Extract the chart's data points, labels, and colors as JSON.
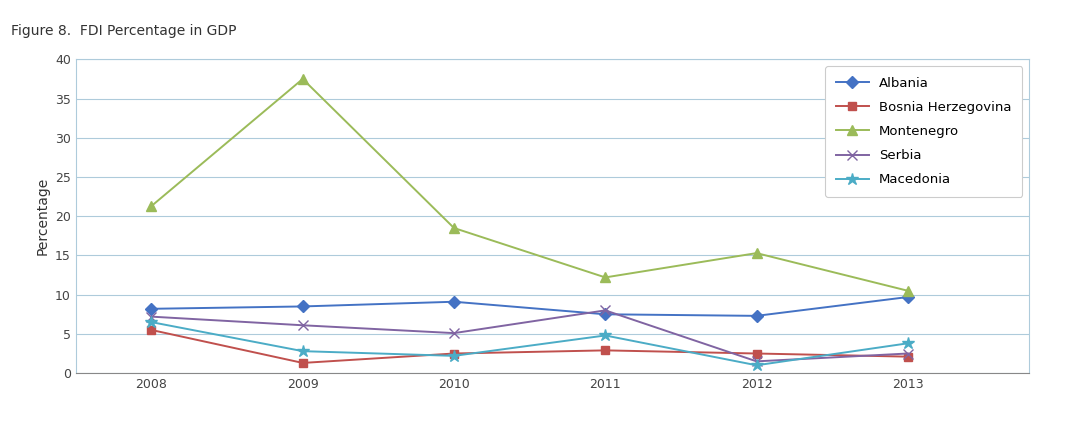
{
  "years": [
    2008,
    2009,
    2010,
    2011,
    2012,
    2013
  ],
  "series": {
    "Albania": {
      "values": [
        8.2,
        8.5,
        9.1,
        7.5,
        7.3,
        9.7
      ],
      "color": "#4472C4",
      "marker": "D"
    },
    "Bosnia Herzegovina": {
      "values": [
        5.5,
        1.3,
        2.5,
        2.9,
        2.5,
        2.1
      ],
      "color": "#C0504D",
      "marker": "s"
    },
    "Montenegro": {
      "values": [
        21.3,
        37.5,
        18.5,
        12.2,
        15.3,
        10.5
      ],
      "color": "#9BBB59",
      "marker": "^"
    },
    "Serbia": {
      "values": [
        7.2,
        6.1,
        5.1,
        8.0,
        1.5,
        2.5
      ],
      "color": "#8064A2",
      "marker": "x"
    },
    "Macedonia": {
      "values": [
        6.5,
        2.8,
        2.2,
        4.8,
        1.0,
        3.8
      ],
      "color": "#4BACC6",
      "marker": "*"
    }
  },
  "ylabel": "Percentage",
  "ylim": [
    0,
    40
  ],
  "yticks": [
    0,
    5,
    10,
    15,
    20,
    25,
    30,
    35,
    40
  ],
  "background_color": "#FFFFFF",
  "title": "Figure 8.  FDI Percentage in GDP",
  "title_strip_color": "#E8E8E8"
}
